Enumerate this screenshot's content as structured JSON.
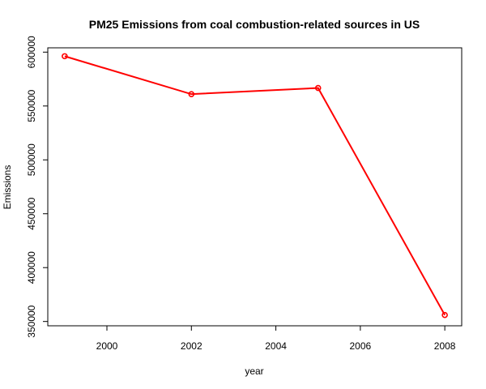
{
  "chart_data": {
    "type": "line",
    "title": "PM25 Emissions from coal combustion-related sources in US",
    "xlabel": "year",
    "ylabel": "Emissions",
    "x": [
      1999,
      2002,
      2005,
      2008
    ],
    "series": [
      {
        "values": [
          596200,
          561000,
          566700,
          356000
        ],
        "color": "#ff0000"
      }
    ],
    "xlim": [
      1998.6,
      2008.4
    ],
    "ylim": [
      346000,
      604000
    ],
    "xticks": [
      2000,
      2002,
      2004,
      2006,
      2008
    ],
    "xtick_labels": [
      "2000",
      "2002",
      "2004",
      "2006",
      "2008"
    ],
    "yticks": [
      350000,
      400000,
      450000,
      500000,
      550000,
      600000
    ],
    "ytick_labels": [
      "350000",
      "400000",
      "450000",
      "500000",
      "550000",
      "600000"
    ],
    "grid": false,
    "markers": "open-circle"
  }
}
